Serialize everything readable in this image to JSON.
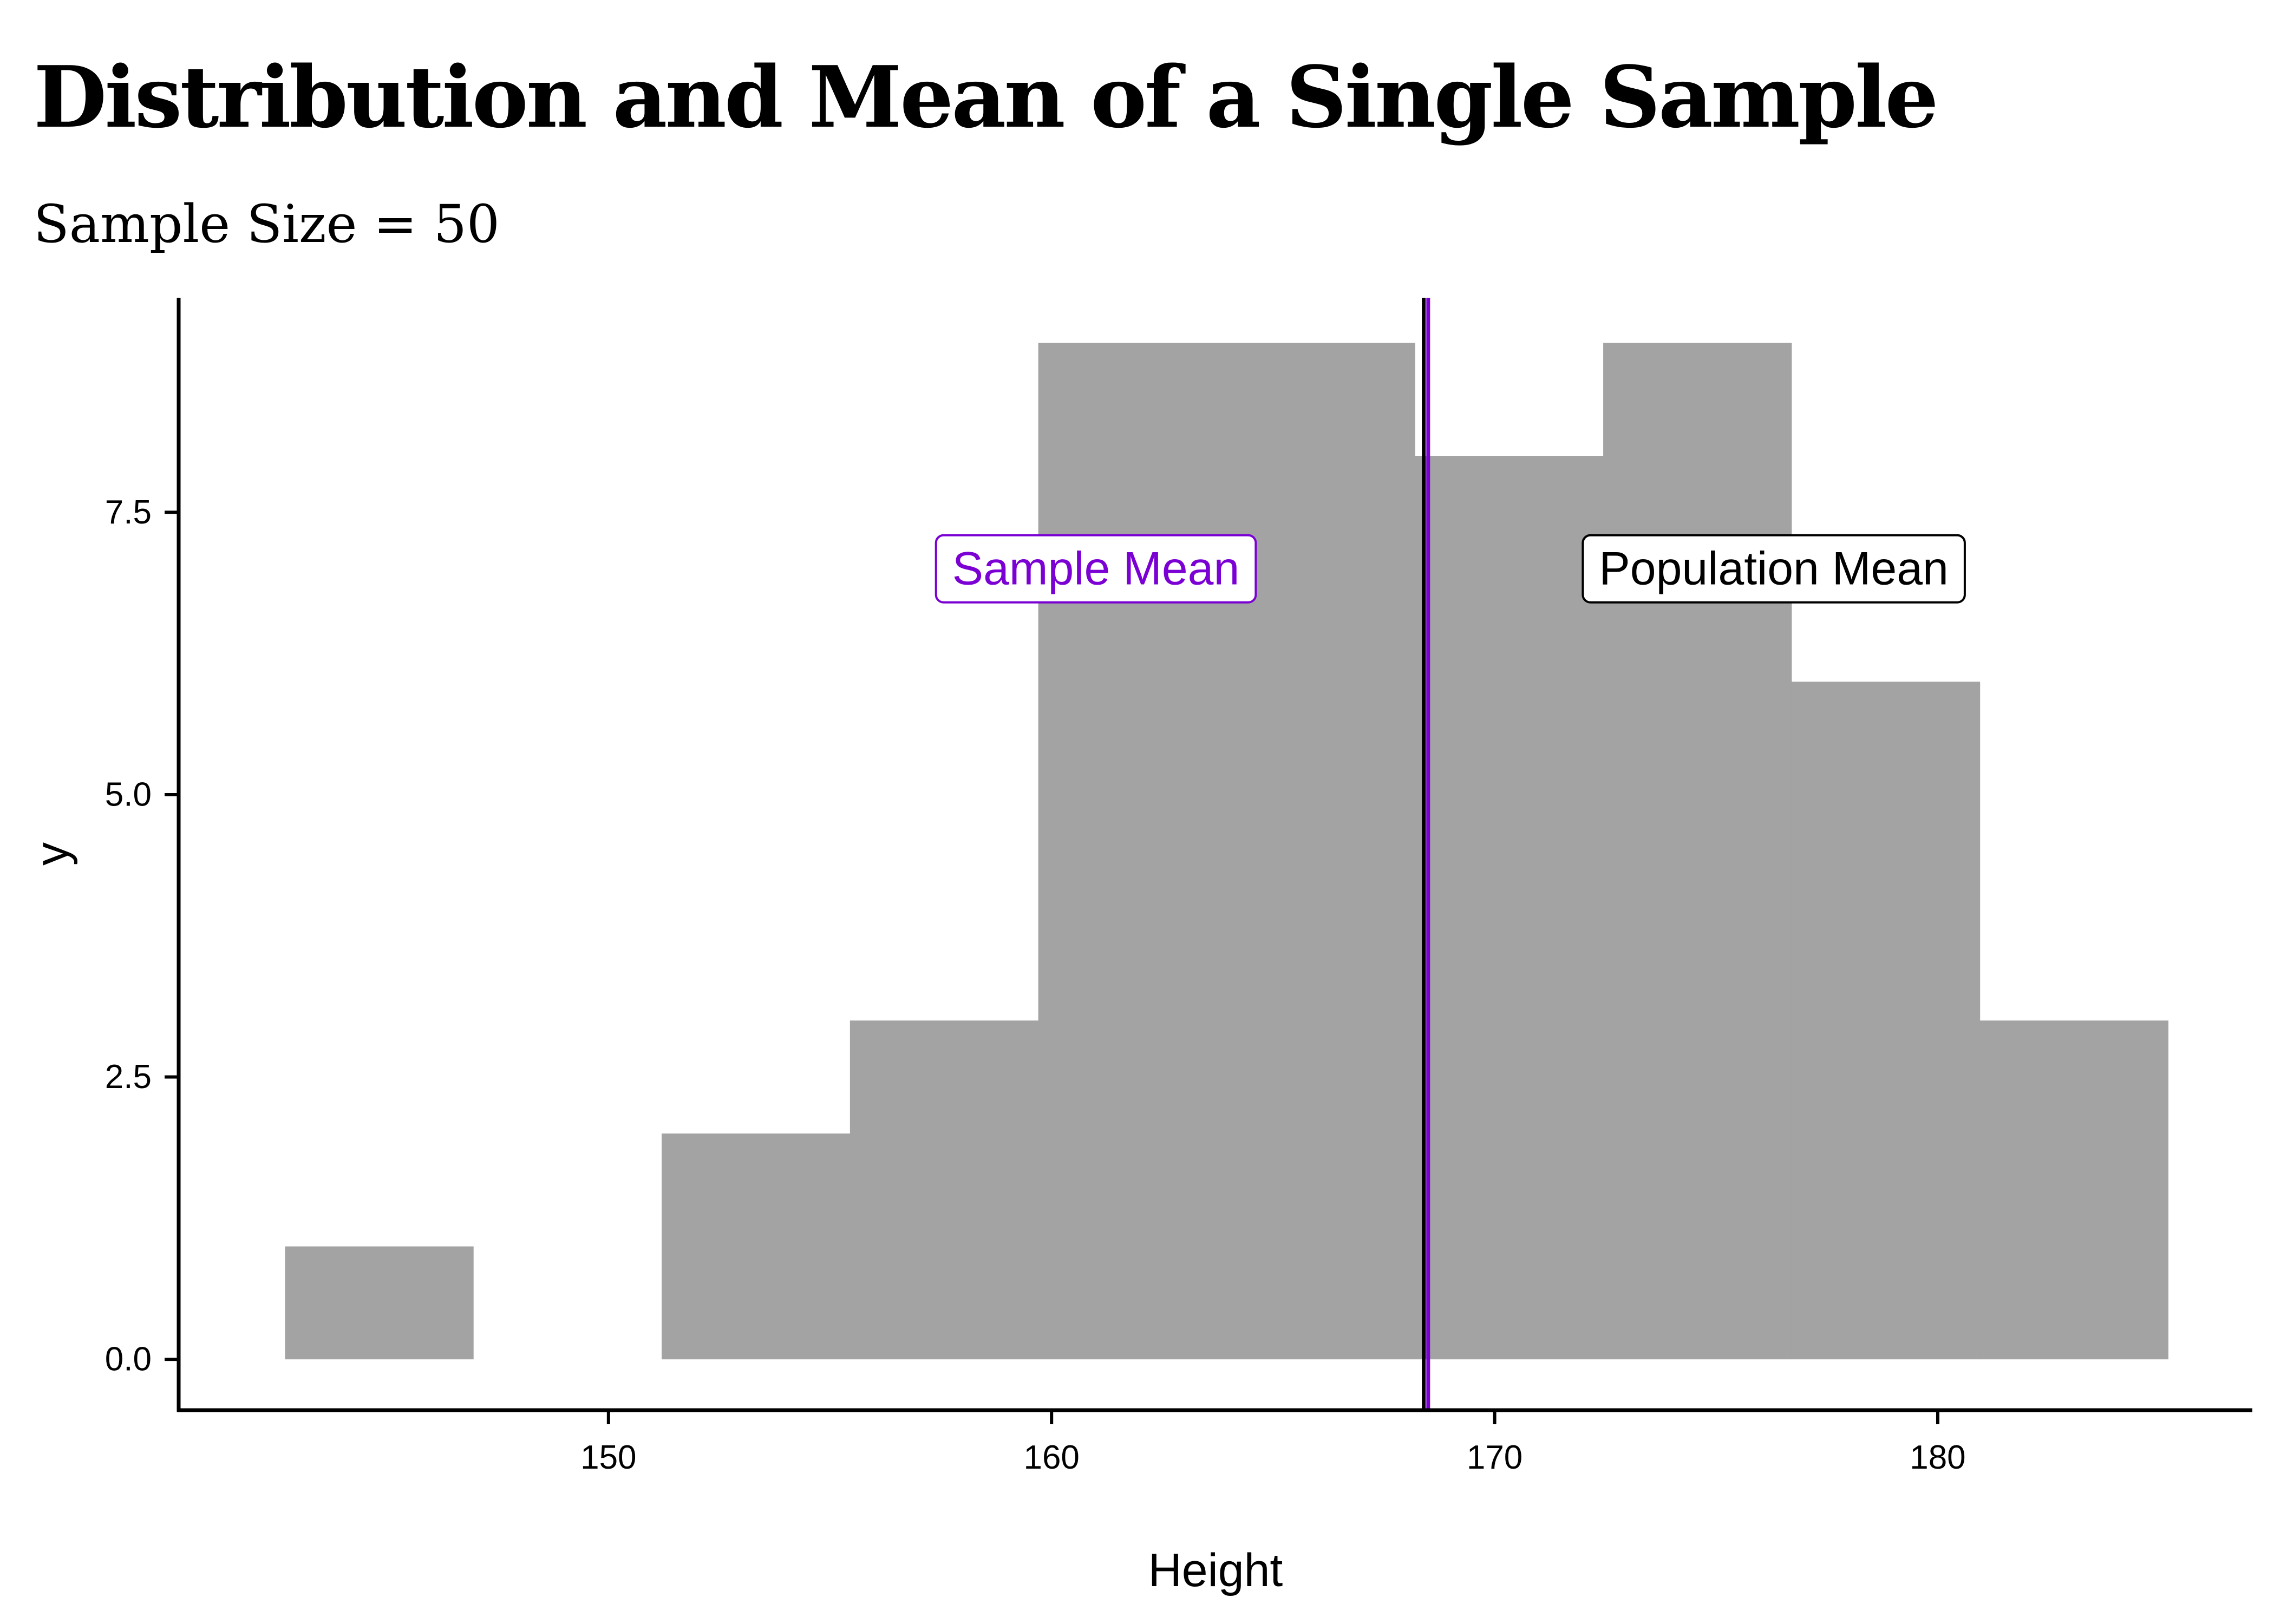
{
  "chart_data": {
    "type": "histogram",
    "title": "Distribution and Mean of a Single Sample",
    "subtitle": "Sample Size = 50",
    "xlabel": "Height",
    "ylabel": "y",
    "xlim": [
      140.3,
      187.1
    ],
    "ylim": [
      -0.45,
      9.4
    ],
    "xticks": [
      150,
      160,
      170,
      180
    ],
    "yticks": [
      0.0,
      2.5,
      5.0,
      7.5
    ],
    "ytick_labels": [
      "0.0",
      "2.5",
      "5.0",
      "7.5"
    ],
    "bins": [
      {
        "x0": 142.7,
        "x1": 146.95,
        "count": 1
      },
      {
        "x0": 146.95,
        "x1": 151.2,
        "count": 0
      },
      {
        "x0": 151.2,
        "x1": 155.45,
        "count": 2
      },
      {
        "x0": 155.45,
        "x1": 159.7,
        "count": 3
      },
      {
        "x0": 159.7,
        "x1": 163.95,
        "count": 9
      },
      {
        "x0": 163.95,
        "x1": 168.2,
        "count": 9
      },
      {
        "x0": 168.2,
        "x1": 172.45,
        "count": 8
      },
      {
        "x0": 172.45,
        "x1": 176.7,
        "count": 9
      },
      {
        "x0": 176.7,
        "x1": 180.95,
        "count": 6
      },
      {
        "x0": 180.95,
        "x1": 185.2,
        "count": 3
      }
    ],
    "bar_color": "#a3a3a3",
    "population_mean": 168.4,
    "sample_mean": 168.5,
    "annotations": [
      {
        "label": "Sample Mean",
        "x": 161.0,
        "y": 7.0,
        "color": "#7b00d4"
      },
      {
        "label": "Population Mean",
        "x": 176.3,
        "y": 7.0,
        "color": "#000000"
      }
    ]
  }
}
